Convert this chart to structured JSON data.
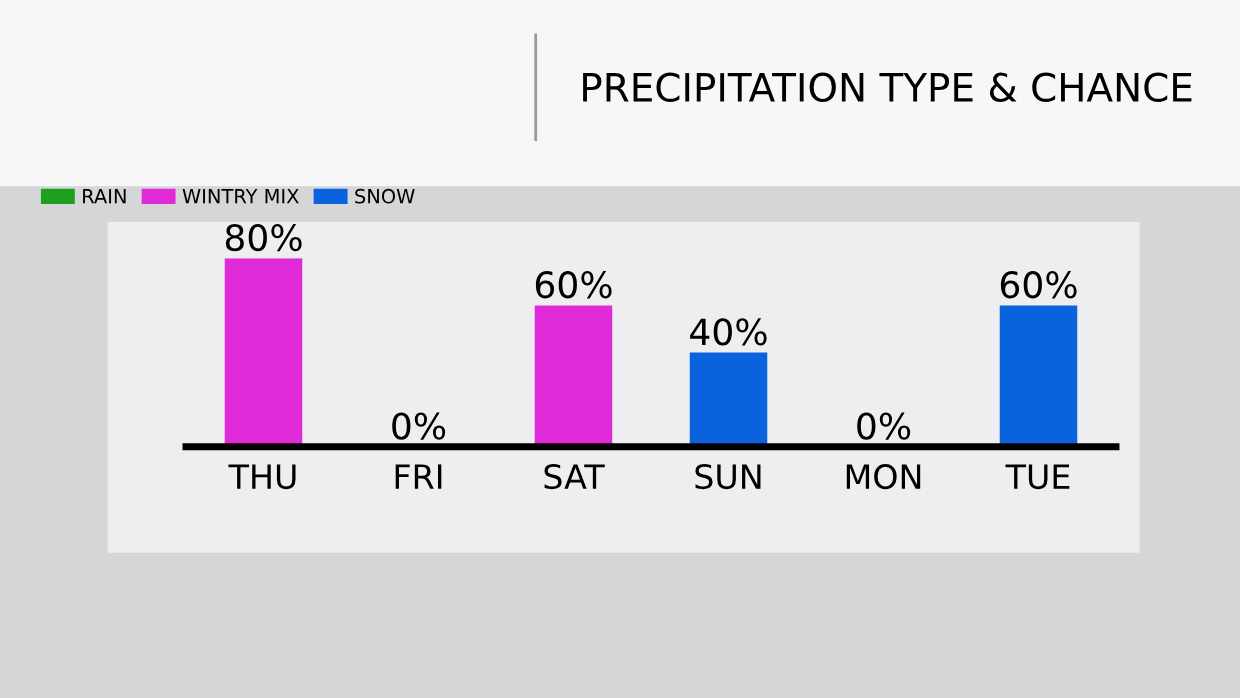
{
  "chart_data": {
    "type": "bar",
    "title": "PRECIPITATION TYPE & CHANCE",
    "categories": [
      "THU",
      "FRI",
      "SAT",
      "SUN",
      "MON",
      "TUE"
    ],
    "series": [
      {
        "name": "RAIN",
        "color": "#1f9e1f",
        "values": [
          null,
          null,
          null,
          null,
          null,
          null
        ]
      },
      {
        "name": "WINTRY MIX",
        "color": "#e02ad8",
        "values": [
          80,
          0,
          60,
          null,
          0,
          null
        ],
        "value_labels": [
          "80%",
          "0%",
          "60%",
          null,
          "0%",
          null
        ]
      },
      {
        "name": "SNOW",
        "color": "#0a62dd",
        "values": [
          null,
          null,
          null,
          40,
          null,
          60
        ],
        "value_labels": [
          null,
          null,
          null,
          "40%",
          null,
          "60%"
        ]
      }
    ],
    "legend": "top left",
    "grid": false
  }
}
